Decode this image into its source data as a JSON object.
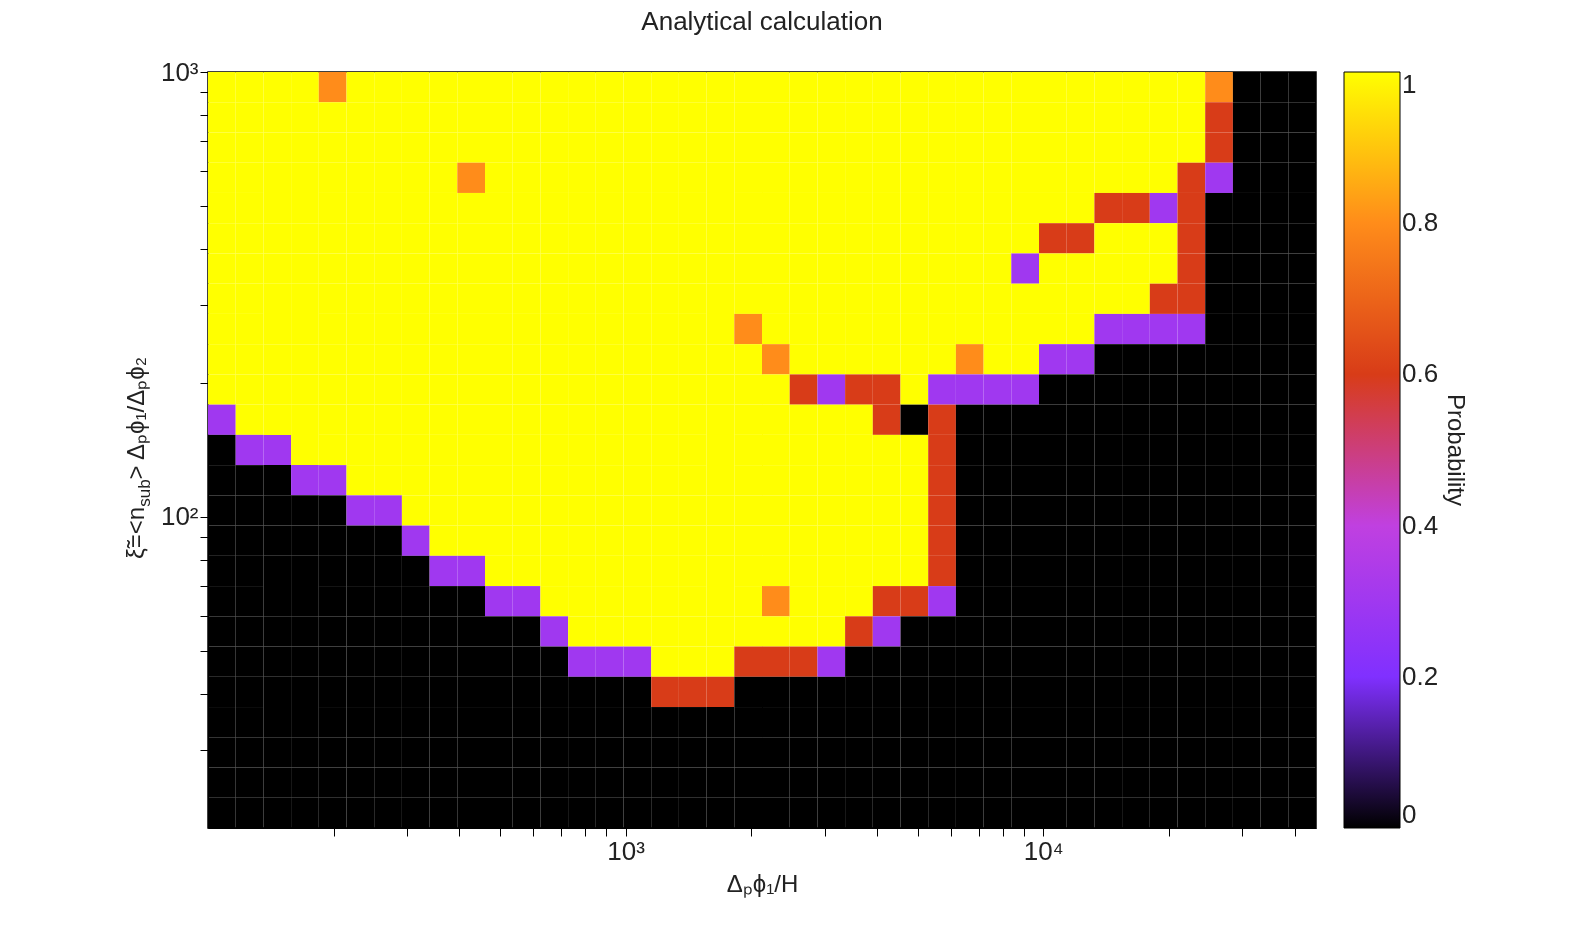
{
  "chart_data": {
    "type": "heatmap",
    "title": "Analytical calculation",
    "xlabel": "Δₚϕ₁/H",
    "ylabel": "ξ̃=<n$_{sub}$> Δₚϕ₁/Δₚϕ₂",
    "clabel": "Probability",
    "log": "xy",
    "xlim": [
      100,
      45000
    ],
    "ylim": [
      20,
      1000
    ],
    "xticks": [
      {
        "value": 200,
        "label": null
      },
      {
        "value": 300,
        "label": null
      },
      {
        "value": 400,
        "label": null
      },
      {
        "value": 500,
        "label": null
      },
      {
        "value": 600,
        "label": null
      },
      {
        "value": 700,
        "label": null
      },
      {
        "value": 800,
        "label": null
      },
      {
        "value": 900,
        "label": null
      },
      {
        "value": 1000,
        "label": "10³"
      },
      {
        "value": 2000,
        "label": null
      },
      {
        "value": 3000,
        "label": null
      },
      {
        "value": 4000,
        "label": null
      },
      {
        "value": 5000,
        "label": null
      },
      {
        "value": 6000,
        "label": null
      },
      {
        "value": 7000,
        "label": null
      },
      {
        "value": 8000,
        "label": null
      },
      {
        "value": 9000,
        "label": null
      },
      {
        "value": 10000,
        "label": "10⁴"
      },
      {
        "value": 20000,
        "label": null
      },
      {
        "value": 30000,
        "label": null
      },
      {
        "value": 40000,
        "label": null
      }
    ],
    "yticks": [
      {
        "value": 30,
        "label": null
      },
      {
        "value": 40,
        "label": null
      },
      {
        "value": 50,
        "label": null
      },
      {
        "value": 60,
        "label": null
      },
      {
        "value": 70,
        "label": null
      },
      {
        "value": 80,
        "label": null
      },
      {
        "value": 90,
        "label": null
      },
      {
        "value": 100,
        "label": "10²"
      },
      {
        "value": 200,
        "label": null
      },
      {
        "value": 300,
        "label": null
      },
      {
        "value": 400,
        "label": null
      },
      {
        "value": 500,
        "label": null
      },
      {
        "value": 600,
        "label": null
      },
      {
        "value": 700,
        "label": null
      },
      {
        "value": 800,
        "label": null
      },
      {
        "value": 900,
        "label": null
      },
      {
        "value": 1000,
        "label": "10³"
      }
    ],
    "clim": [
      0,
      1
    ],
    "cticks": [
      0,
      0.2,
      0.4,
      0.6,
      0.8,
      1
    ],
    "cells": [
      [
        1,
        1,
        1,
        1,
        0.8,
        1,
        1,
        1,
        1,
        1,
        1,
        1,
        1,
        1,
        1,
        1,
        1,
        1,
        1,
        1,
        1,
        1,
        1,
        1,
        1,
        1,
        1,
        1,
        1,
        1,
        1,
        1,
        1,
        1,
        1,
        1,
        0.8,
        0,
        0,
        0
      ],
      [
        1,
        1,
        1,
        1,
        1,
        1,
        1,
        1,
        1,
        1,
        1,
        1,
        1,
        1,
        1,
        1,
        1,
        1,
        1,
        1,
        1,
        1,
        1,
        1,
        1,
        1,
        1,
        1,
        1,
        1,
        1,
        1,
        1,
        1,
        1,
        1,
        0.6,
        0,
        0,
        0
      ],
      [
        1,
        1,
        1,
        1,
        1,
        1,
        1,
        1,
        1,
        1,
        1,
        1,
        1,
        1,
        1,
        1,
        1,
        1,
        1,
        1,
        1,
        1,
        1,
        1,
        1,
        1,
        1,
        1,
        1,
        1,
        1,
        1,
        1,
        1,
        1,
        1,
        0.6,
        0,
        0,
        0
      ],
      [
        1,
        1,
        1,
        1,
        1,
        1,
        1,
        1,
        1,
        0.8,
        1,
        1,
        1,
        1,
        1,
        1,
        1,
        1,
        1,
        1,
        1,
        1,
        1,
        1,
        1,
        1,
        1,
        1,
        1,
        1,
        1,
        1,
        1,
        1,
        1,
        0.6,
        0.3,
        0,
        0,
        0
      ],
      [
        1,
        1,
        1,
        1,
        1,
        1,
        1,
        1,
        1,
        1,
        1,
        1,
        1,
        1,
        1,
        1,
        1,
        1,
        1,
        1,
        1,
        1,
        1,
        1,
        1,
        1,
        1,
        1,
        1,
        1,
        1,
        1,
        0.6,
        0.6,
        0.3,
        0.6,
        0,
        0,
        0,
        0
      ],
      [
        1,
        1,
        1,
        1,
        1,
        1,
        1,
        1,
        1,
        1,
        1,
        1,
        1,
        1,
        1,
        1,
        1,
        1,
        1,
        1,
        1,
        1,
        1,
        1,
        1,
        1,
        1,
        1,
        1,
        1,
        0.6,
        0.6,
        1,
        1,
        1,
        0.6,
        0,
        0,
        0,
        0
      ],
      [
        1,
        1,
        1,
        1,
        1,
        1,
        1,
        1,
        1,
        1,
        1,
        1,
        1,
        1,
        1,
        1,
        1,
        1,
        1,
        1,
        1,
        1,
        1,
        1,
        1,
        1,
        1,
        1,
        1,
        0.3,
        1,
        1,
        1,
        1,
        1,
        0.6,
        0,
        0,
        0,
        0
      ],
      [
        1,
        1,
        1,
        1,
        1,
        1,
        1,
        1,
        1,
        1,
        1,
        1,
        1,
        1,
        1,
        1,
        1,
        1,
        1,
        1,
        1,
        1,
        1,
        1,
        1,
        1,
        1,
        1,
        1,
        1,
        1,
        1,
        1,
        1,
        0.6,
        0.6,
        0,
        0,
        0,
        0
      ],
      [
        1,
        1,
        1,
        1,
        1,
        1,
        1,
        1,
        1,
        1,
        1,
        1,
        1,
        1,
        1,
        1,
        1,
        1,
        1,
        0.8,
        1,
        1,
        1,
        1,
        1,
        1,
        1,
        1,
        1,
        1,
        1,
        1,
        0.3,
        0.3,
        0.3,
        0.3,
        0,
        0,
        0,
        0
      ],
      [
        1,
        1,
        1,
        1,
        1,
        1,
        1,
        1,
        1,
        1,
        1,
        1,
        1,
        1,
        1,
        1,
        1,
        1,
        1,
        1,
        0.8,
        1,
        1,
        1,
        1,
        1,
        1,
        0.8,
        1,
        1,
        0.3,
        0.3,
        0,
        0,
        0,
        0,
        0,
        0,
        0,
        0
      ],
      [
        1,
        1,
        1,
        1,
        1,
        1,
        1,
        1,
        1,
        1,
        1,
        1,
        1,
        1,
        1,
        1,
        1,
        1,
        1,
        1,
        1,
        0.6,
        0.3,
        0.6,
        0.6,
        1,
        0.3,
        0.3,
        0.3,
        0.3,
        0,
        0,
        0,
        0,
        0,
        0,
        0,
        0,
        0,
        0
      ],
      [
        0.3,
        1,
        1,
        1,
        1,
        1,
        1,
        1,
        1,
        1,
        1,
        1,
        1,
        1,
        1,
        1,
        1,
        1,
        1,
        1,
        1,
        1,
        1,
        1,
        0.6,
        0,
        0.6,
        0,
        0,
        0,
        0,
        0,
        0,
        0,
        0,
        0,
        0,
        0,
        0,
        0
      ],
      [
        0,
        0.3,
        0.3,
        1,
        1,
        1,
        1,
        1,
        1,
        1,
        1,
        1,
        1,
        1,
        1,
        1,
        1,
        1,
        1,
        1,
        1,
        1,
        1,
        1,
        1,
        1,
        0.6,
        0,
        0,
        0,
        0,
        0,
        0,
        0,
        0,
        0,
        0,
        0,
        0,
        0
      ],
      [
        0,
        0,
        0,
        0.3,
        0.3,
        1,
        1,
        1,
        1,
        1,
        1,
        1,
        1,
        1,
        1,
        1,
        1,
        1,
        1,
        1,
        1,
        1,
        1,
        1,
        1,
        1,
        0.6,
        0,
        0,
        0,
        0,
        0,
        0,
        0,
        0,
        0,
        0,
        0,
        0,
        0
      ],
      [
        0,
        0,
        0,
        0,
        0,
        0.3,
        0.3,
        1,
        1,
        1,
        1,
        1,
        1,
        1,
        1,
        1,
        1,
        1,
        1,
        1,
        1,
        1,
        1,
        1,
        1,
        1,
        0.6,
        0,
        0,
        0,
        0,
        0,
        0,
        0,
        0,
        0,
        0,
        0,
        0,
        0
      ],
      [
        0,
        0,
        0,
        0,
        0,
        0,
        0,
        0.3,
        1,
        1,
        1,
        1,
        1,
        1,
        1,
        1,
        1,
        1,
        1,
        1,
        1,
        1,
        1,
        1,
        1,
        1,
        0.6,
        0,
        0,
        0,
        0,
        0,
        0,
        0,
        0,
        0,
        0,
        0,
        0,
        0
      ],
      [
        0,
        0,
        0,
        0,
        0,
        0,
        0,
        0,
        0.3,
        0.3,
        1,
        1,
        1,
        1,
        1,
        1,
        1,
        1,
        1,
        1,
        1,
        1,
        1,
        1,
        1,
        1,
        0.6,
        0,
        0,
        0,
        0,
        0,
        0,
        0,
        0,
        0,
        0,
        0,
        0,
        0
      ],
      [
        0,
        0,
        0,
        0,
        0,
        0,
        0,
        0,
        0,
        0,
        0.3,
        0.3,
        1,
        1,
        1,
        1,
        1,
        1,
        1,
        1,
        0.8,
        1,
        1,
        1,
        0.6,
        0.6,
        0.3,
        0,
        0,
        0,
        0,
        0,
        0,
        0,
        0,
        0,
        0,
        0,
        0,
        0
      ],
      [
        0,
        0,
        0,
        0,
        0,
        0,
        0,
        0,
        0,
        0,
        0,
        0,
        0.3,
        1,
        1,
        1,
        1,
        1,
        1,
        1,
        1,
        1,
        1,
        0.6,
        0.3,
        0,
        0,
        0,
        0,
        0,
        0,
        0,
        0,
        0,
        0,
        0,
        0,
        0,
        0,
        0
      ],
      [
        0,
        0,
        0,
        0,
        0,
        0,
        0,
        0,
        0,
        0,
        0,
        0,
        0,
        0.3,
        0.3,
        0.3,
        1,
        1,
        1,
        0.6,
        0.6,
        0.6,
        0.3,
        0,
        0,
        0,
        0,
        0,
        0,
        0,
        0,
        0,
        0,
        0,
        0,
        0,
        0,
        0,
        0,
        0
      ],
      [
        0,
        0,
        0,
        0,
        0,
        0,
        0,
        0,
        0,
        0,
        0,
        0,
        0,
        0,
        0,
        0,
        0.6,
        0.6,
        0.6,
        0,
        0,
        0,
        0,
        0,
        0,
        0,
        0,
        0,
        0,
        0,
        0,
        0,
        0,
        0,
        0,
        0,
        0,
        0,
        0,
        0
      ],
      [
        0,
        0,
        0,
        0,
        0,
        0,
        0,
        0,
        0,
        0,
        0,
        0,
        0,
        0,
        0,
        0,
        0,
        0,
        0,
        0,
        0,
        0,
        0,
        0,
        0,
        0,
        0,
        0,
        0,
        0,
        0,
        0,
        0,
        0,
        0,
        0,
        0,
        0,
        0,
        0
      ],
      [
        0,
        0,
        0,
        0,
        0,
        0,
        0,
        0,
        0,
        0,
        0,
        0,
        0,
        0,
        0,
        0,
        0,
        0,
        0,
        0,
        0,
        0,
        0,
        0,
        0,
        0,
        0,
        0,
        0,
        0,
        0,
        0,
        0,
        0,
        0,
        0,
        0,
        0,
        0,
        0
      ],
      [
        0,
        0,
        0,
        0,
        0,
        0,
        0,
        0,
        0,
        0,
        0,
        0,
        0,
        0,
        0,
        0,
        0,
        0,
        0,
        0,
        0,
        0,
        0,
        0,
        0,
        0,
        0,
        0,
        0,
        0,
        0,
        0,
        0,
        0,
        0,
        0,
        0,
        0,
        0,
        0
      ],
      [
        0,
        0,
        0,
        0,
        0,
        0,
        0,
        0,
        0,
        0,
        0,
        0,
        0,
        0,
        0,
        0,
        0,
        0,
        0,
        0,
        0,
        0,
        0,
        0,
        0,
        0,
        0,
        0,
        0,
        0,
        0,
        0,
        0,
        0,
        0,
        0,
        0,
        0,
        0,
        0
      ]
    ]
  }
}
